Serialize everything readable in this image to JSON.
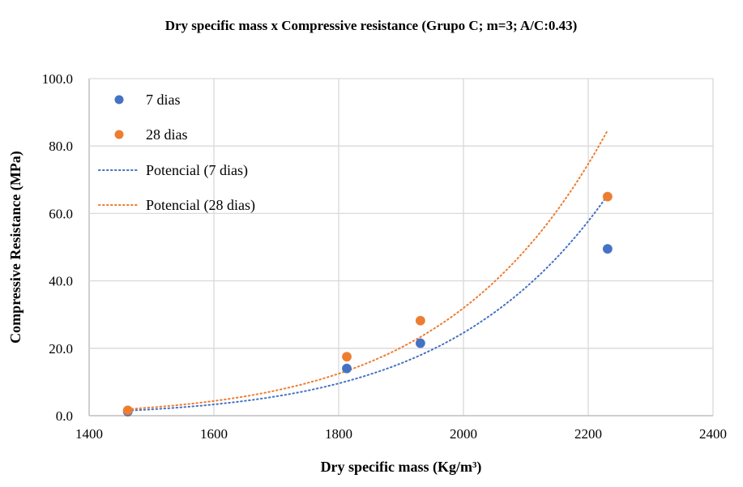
{
  "chart_data": {
    "type": "scatter",
    "title": "Dry specific mass x Compressive resistance (Grupo C; m=3; A/C:0.43)",
    "xlabel": "Dry specific mass (Kg/m³)",
    "ylabel": "Compressive Resistance (MPa)",
    "xlim": [
      1400,
      2400
    ],
    "ylim": [
      0,
      100
    ],
    "xticks": [
      "1400",
      "1600",
      "1800",
      "2000",
      "2200",
      "2400"
    ],
    "yticks": [
      "0.0",
      "20.0",
      "40.0",
      "60.0",
      "80.0",
      "100.0"
    ],
    "grid": true,
    "legend_placement": "top-left",
    "series": [
      {
        "name": "7 dias",
        "color": "#4472C4",
        "x": [
          1462,
          1813,
          1931,
          2231
        ],
        "y": [
          1.2,
          14.0,
          21.5,
          49.5
        ]
      },
      {
        "name": "28 dias",
        "color": "#ED7D31",
        "x": [
          1462,
          1813,
          1931,
          2231
        ],
        "y": [
          1.6,
          17.5,
          28.2,
          65.0
        ]
      }
    ],
    "trendlines": [
      {
        "name": "Potencial (7 dias)",
        "type": "power",
        "of": "7 dias",
        "color": "#4472C4",
        "style": "dotted"
      },
      {
        "name": "Potencial (28 dias)",
        "type": "power",
        "of": "28 dias",
        "color": "#ED7D31",
        "style": "dotted"
      }
    ]
  }
}
